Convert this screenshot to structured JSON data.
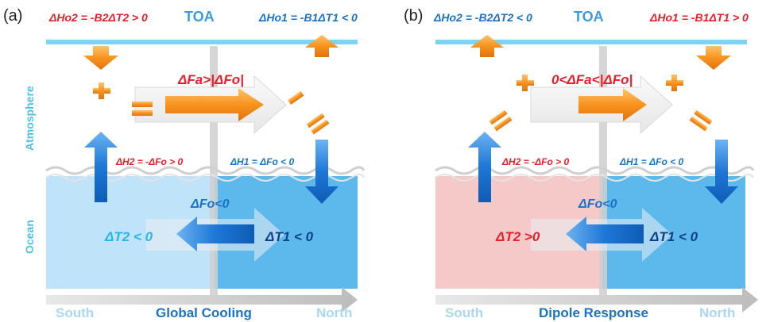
{
  "panel_a": {
    "tag": "(a)",
    "toa": "TOA",
    "atmosphere": "Atmosphere",
    "ocean": "Ocean",
    "south": "South",
    "north": "North",
    "title": "Global Cooling",
    "ho2": "ΔHo2 = -B2ΔT2 > 0",
    "ho1": "ΔHo1 = -B1ΔT1 < 0",
    "fa": "ΔFa>|ΔFo|",
    "h2": "ΔH2 = -ΔFo > 0",
    "h1": "ΔH1 = ΔFo < 0",
    "fo": "ΔFo<0",
    "t2": "ΔT2 < 0",
    "t1": "ΔT1 < 0"
  },
  "panel_b": {
    "tag": "(b)",
    "toa": "TOA",
    "south": "South",
    "north": "North",
    "title": "Dipole Response",
    "ho2": "ΔHo2 = -B2ΔT2 < 0",
    "ho1": "ΔHo1 = -B1ΔT1 > 0",
    "fa": "0<ΔFa<|ΔFo|",
    "h2": "ΔH2 = -ΔFo > 0",
    "h1": "ΔH1 = ΔFo < 0",
    "fo": "ΔFo<0",
    "t2": "ΔT2 >0",
    "t1": "ΔT1 < 0"
  },
  "colors": {
    "red": "#e8202a",
    "blue": "#1a73c8",
    "orange": "#f39a1e",
    "toa_line": "#7fd3f2",
    "ocean_light": "#bfe3f8",
    "ocean_deep": "#5db8ec",
    "ocean_pink": "#f6c9c9",
    "south_text": "#a9d8f4",
    "north_text": "#a9d8f4"
  }
}
